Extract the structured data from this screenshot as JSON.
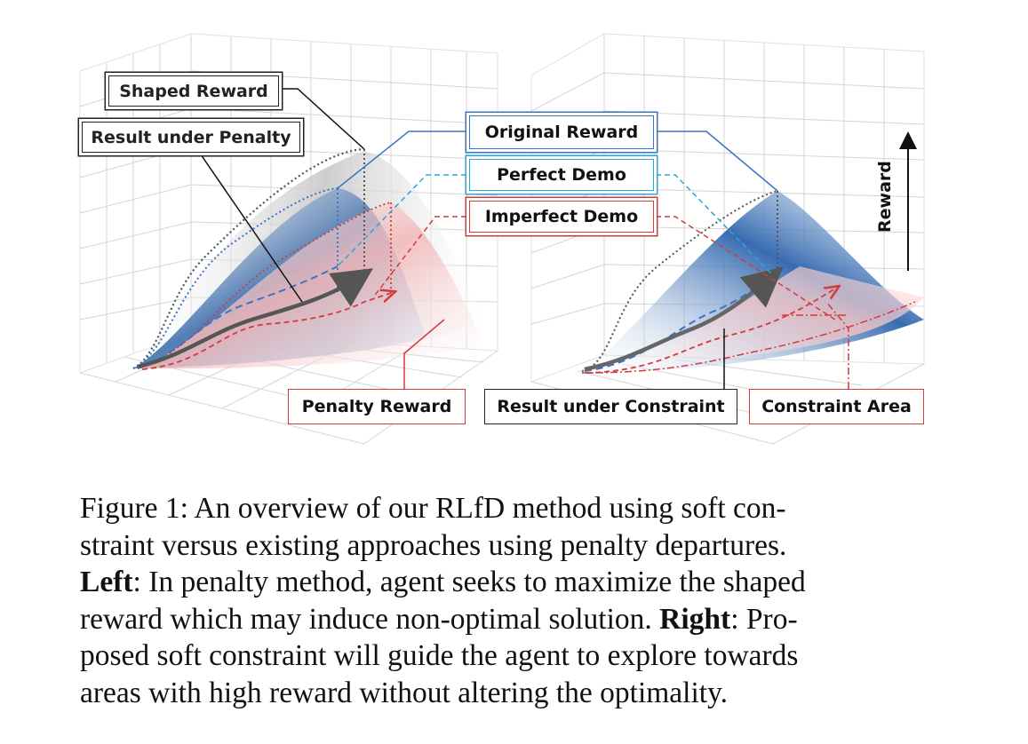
{
  "labels": {
    "shaped_reward": "Shaped Reward",
    "result_under_penalty": "Result under Penalty",
    "original_reward": "Original Reward",
    "perfect_demo": "Perfect Demo",
    "imperfect_demo": "Imperfect Demo",
    "penalty_reward": "Penalty Reward",
    "result_under_constraint": "Result under Constraint",
    "constraint_area": "Constraint Area",
    "reward_axis": "Reward"
  },
  "colors": {
    "shaped": "#8a8a8a",
    "original": "#3a73c4",
    "perfect": "#2aa5d8",
    "imperfect": "#d43a3a",
    "result": "#555555"
  },
  "caption": {
    "line1": "Figure 1: An overview of our RLfD method using soft con-",
    "line2": "straint versus existing approaches using penalty departures.",
    "line3_bold": "Left",
    "line3_rest": ": In penalty method, agent seeks to maximize the shaped",
    "line4_pre": "reward which may induce non-optimal solution. ",
    "line4_bold": "Right",
    "line4_rest": ": Pro-",
    "line5": "posed soft constraint will guide the agent to explore towards",
    "line6": "areas with high reward without altering the optimality."
  }
}
